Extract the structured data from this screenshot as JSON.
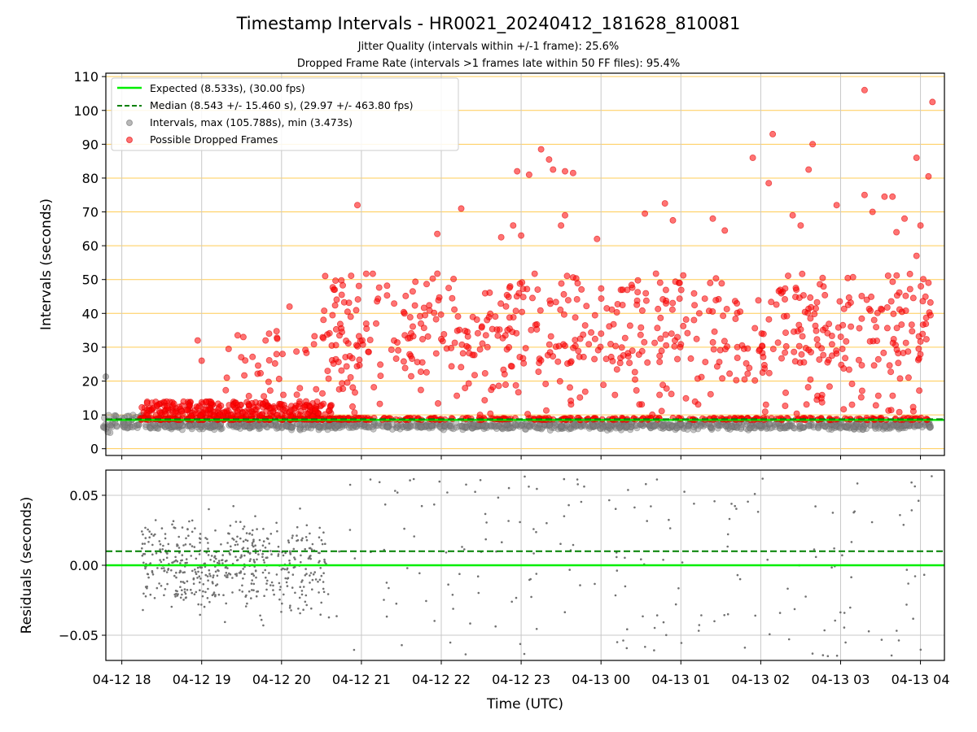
{
  "chart_data": {
    "type": "scatter",
    "title": "Timestamp Intervals - HR0021_20240412_181628_810081",
    "subtitle_jitter": "Jitter Quality (intervals within +/-1 frame): 25.6%",
    "subtitle_dropped": "Dropped Frame Rate (intervals >1 frames late within 50 FF files): 95.4%",
    "xlabel": "Time (UTC)",
    "x_ticks": [
      "04-12 18",
      "04-12 19",
      "04-12 20",
      "04-12 21",
      "04-12 22",
      "04-12 23",
      "04-13 00",
      "04-13 01",
      "04-13 02",
      "04-13 03",
      "04-13 04"
    ],
    "x_range_hours": [
      17.8,
      28.3
    ],
    "top": {
      "ylabel": "Intervals (seconds)",
      "ylim": [
        -2,
        111
      ],
      "yticks": [
        0,
        10,
        20,
        30,
        40,
        50,
        60,
        70,
        80,
        90,
        100,
        110
      ],
      "grid": true,
      "orange_hgrid": true,
      "legend_placement": "upper-left",
      "expected_value": 8.533,
      "median_value": 8.543,
      "max_interval": 105.788,
      "min_interval": 3.473,
      "series": [
        {
          "name": "Expected (8.533s), (30.00 fps)",
          "kind": "line",
          "color": "#00ee00",
          "value": 8.533
        },
        {
          "name": "Median (8.543 +/- 15.460 s), (29.97 +/- 463.80 fps)",
          "kind": "dashed-line",
          "color": "#008000",
          "value": 8.543
        },
        {
          "name": "Intervals, max (105.788s), min (3.473s)",
          "kind": "points",
          "color": "#808080"
        },
        {
          "name": "Possible Dropped Frames",
          "kind": "points",
          "color": "#ff0000"
        }
      ],
      "highlights": [
        {
          "t": 17.8,
          "v": 21.3
        },
        {
          "t": 18.95,
          "v": 32
        },
        {
          "t": 19.0,
          "v": 26
        },
        {
          "t": 19.45,
          "v": 33.5
        },
        {
          "t": 19.8,
          "v": 32
        },
        {
          "t": 20.1,
          "v": 42
        },
        {
          "t": 20.95,
          "v": 72
        },
        {
          "t": 21.95,
          "v": 63.5
        },
        {
          "t": 22.25,
          "v": 71
        },
        {
          "t": 22.95,
          "v": 82
        },
        {
          "t": 23.1,
          "v": 81
        },
        {
          "t": 23.25,
          "v": 88.5
        },
        {
          "t": 23.35,
          "v": 85.5
        },
        {
          "t": 23.4,
          "v": 82.5
        },
        {
          "t": 23.55,
          "v": 82
        },
        {
          "t": 23.65,
          "v": 81.5
        },
        {
          "t": 23.5,
          "v": 66
        },
        {
          "t": 23.55,
          "v": 69
        },
        {
          "t": 23.0,
          "v": 63
        },
        {
          "t": 22.75,
          "v": 62.5
        },
        {
          "t": 22.9,
          "v": 66
        },
        {
          "t": 23.95,
          "v": 62
        },
        {
          "t": 24.55,
          "v": 69.5
        },
        {
          "t": 24.8,
          "v": 72.5
        },
        {
          "t": 24.9,
          "v": 67.5
        },
        {
          "t": 25.4,
          "v": 68
        },
        {
          "t": 25.55,
          "v": 64.5
        },
        {
          "t": 25.9,
          "v": 86
        },
        {
          "t": 26.15,
          "v": 93
        },
        {
          "t": 26.1,
          "v": 78.5
        },
        {
          "t": 26.6,
          "v": 82.5
        },
        {
          "t": 26.65,
          "v": 90
        },
        {
          "t": 26.4,
          "v": 69
        },
        {
          "t": 26.5,
          "v": 66
        },
        {
          "t": 26.95,
          "v": 72
        },
        {
          "t": 27.3,
          "v": 75
        },
        {
          "t": 27.4,
          "v": 70
        },
        {
          "t": 27.55,
          "v": 74.5
        },
        {
          "t": 27.65,
          "v": 74.5
        },
        {
          "t": 27.8,
          "v": 68
        },
        {
          "t": 27.7,
          "v": 64
        },
        {
          "t": 27.95,
          "v": 86
        },
        {
          "t": 28.0,
          "v": 66
        },
        {
          "t": 28.1,
          "v": 80.5
        },
        {
          "t": 28.15,
          "v": 102.5
        },
        {
          "t": 27.3,
          "v": 106
        },
        {
          "t": 27.95,
          "v": 57
        },
        {
          "t": 27.85,
          "v": 21
        }
      ]
    },
    "bottom": {
      "ylabel": "Residuals (seconds)",
      "ylim": [
        -0.068,
        0.068
      ],
      "yticks": [
        -0.05,
        0.0,
        0.05
      ],
      "ytick_labels": [
        "−0.05",
        "0.00",
        "0.05"
      ],
      "grid": true,
      "expected_residual": 0.0,
      "median_residual": 0.01
    }
  }
}
